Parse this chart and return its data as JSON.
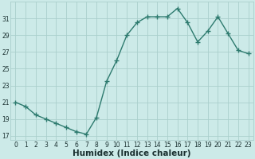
{
  "x": [
    0,
    1,
    2,
    3,
    4,
    5,
    6,
    7,
    8,
    9,
    10,
    11,
    12,
    13,
    14,
    15,
    16,
    17,
    18,
    19,
    20,
    21,
    22,
    23
  ],
  "y": [
    21.0,
    20.5,
    19.5,
    19.0,
    18.5,
    18.0,
    17.5,
    17.2,
    19.2,
    23.5,
    26.0,
    29.0,
    30.5,
    31.2,
    31.2,
    31.2,
    32.2,
    30.5,
    28.2,
    29.5,
    31.2,
    29.2,
    27.2,
    26.8
  ],
  "line_color": "#2d7a6e",
  "marker": "+",
  "marker_size": 4,
  "line_width": 1.0,
  "bg_color": "#cceae8",
  "grid_color": "#aacfcc",
  "xlabel": "Humidex (Indice chaleur)",
  "xlim": [
    -0.5,
    23.5
  ],
  "ylim": [
    16.5,
    33.0
  ],
  "yticks": [
    17,
    19,
    21,
    23,
    25,
    27,
    29,
    31
  ],
  "xticks": [
    0,
    1,
    2,
    3,
    4,
    5,
    6,
    7,
    8,
    9,
    10,
    11,
    12,
    13,
    14,
    15,
    16,
    17,
    18,
    19,
    20,
    21,
    22,
    23
  ],
  "tick_fontsize": 5.5,
  "xlabel_fontsize": 7.5,
  "label_color": "#1a3030"
}
